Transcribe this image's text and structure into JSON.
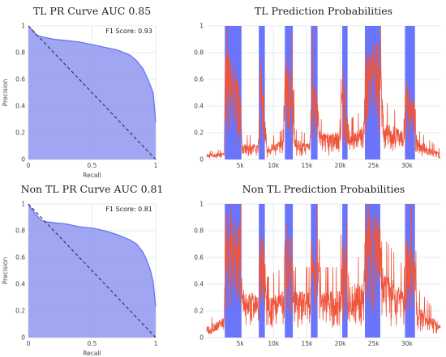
{
  "chart_data": [
    {
      "id": "tl-pr",
      "type": "area",
      "title": "TL PR Curve AUC 0.85",
      "xlabel": "Recall",
      "ylabel": "Precision",
      "xlim": [
        0,
        1
      ],
      "ylim": [
        0,
        1
      ],
      "xticks": [
        0,
        0.5,
        1
      ],
      "xtick_labels": [
        "0",
        "0.5",
        "1"
      ],
      "yticks": [
        0,
        0.2,
        0.4,
        0.6,
        0.8,
        1
      ],
      "ytick_labels": [
        "0",
        "0.2",
        "0.4",
        "0.6",
        "0.8",
        "1"
      ],
      "annotation": "F1 Score: 0.93",
      "baseline": {
        "x": [
          0,
          1
        ],
        "y": [
          1,
          0
        ],
        "style": "dashed"
      },
      "fill_color": "#8f96ee",
      "line_color": "#636efa",
      "x": [
        0,
        0.02,
        0.05,
        0.06,
        0.1,
        0.2,
        0.3,
        0.4,
        0.5,
        0.6,
        0.7,
        0.8,
        0.85,
        0.9,
        0.93,
        0.96,
        0.98,
        1.0
      ],
      "y": [
        1.0,
        0.98,
        0.95,
        0.93,
        0.92,
        0.9,
        0.89,
        0.88,
        0.86,
        0.84,
        0.82,
        0.78,
        0.74,
        0.68,
        0.62,
        0.55,
        0.5,
        0.28
      ]
    },
    {
      "id": "tl-prob",
      "type": "line",
      "title": "TL Prediction Probabilities",
      "xlabel": "",
      "ylabel": "",
      "xlim": [
        0,
        35000
      ],
      "ylim": [
        0,
        1
      ],
      "xticks": [
        5000,
        10000,
        15000,
        20000,
        25000,
        30000
      ],
      "xtick_labels": [
        "5k",
        "10k",
        "15k",
        "20k",
        "25k",
        "30k"
      ],
      "yticks": [
        0,
        0.2,
        0.4,
        0.6,
        0.8,
        1
      ],
      "ytick_labels": [
        "0",
        "0.2",
        "0.4",
        "0.6",
        "0.8",
        "1"
      ],
      "series": [
        {
          "color": "#636efa",
          "kind": "label-blocks",
          "regions": [
            [
              2700,
              5200
            ],
            [
              7800,
              8700
            ],
            [
              11700,
              12900
            ],
            [
              15600,
              16600
            ],
            [
              20300,
              21100
            ],
            [
              23700,
              26000
            ],
            [
              29700,
              31200
            ]
          ]
        },
        {
          "color": "#ef553b",
          "kind": "noisy-probability",
          "envelope": [
            [
              0,
              0.04
            ],
            [
              2600,
              0.05
            ],
            [
              2800,
              0.85
            ],
            [
              5000,
              0.6
            ],
            [
              5300,
              0.12
            ],
            [
              7700,
              0.12
            ],
            [
              8000,
              0.8
            ],
            [
              8700,
              0.4
            ],
            [
              9000,
              0.1
            ],
            [
              11500,
              0.15
            ],
            [
              11800,
              0.85
            ],
            [
              12900,
              0.6
            ],
            [
              13200,
              0.15
            ],
            [
              15500,
              0.12
            ],
            [
              15700,
              0.7
            ],
            [
              16600,
              0.5
            ],
            [
              17000,
              0.2
            ],
            [
              20000,
              0.2
            ],
            [
              20400,
              0.75
            ],
            [
              21100,
              0.3
            ],
            [
              21500,
              0.2
            ],
            [
              23500,
              0.25
            ],
            [
              23800,
              0.9
            ],
            [
              26000,
              0.85
            ],
            [
              26500,
              0.3
            ],
            [
              29600,
              0.2
            ],
            [
              29800,
              0.6
            ],
            [
              31200,
              0.45
            ],
            [
              31500,
              0.15
            ],
            [
              35000,
              0.05
            ]
          ]
        }
      ]
    },
    {
      "id": "nontl-pr",
      "type": "area",
      "title": "Non TL PR Curve AUC 0.81",
      "xlabel": "Recall",
      "ylabel": "Precision",
      "xlim": [
        0,
        1
      ],
      "ylim": [
        0,
        1
      ],
      "xticks": [
        0,
        0.5,
        1
      ],
      "xtick_labels": [
        "0",
        "0.5",
        "1"
      ],
      "yticks": [
        0,
        0.2,
        0.4,
        0.6,
        0.8,
        1
      ],
      "ytick_labels": [
        "0",
        "0.2",
        "0.4",
        "0.6",
        "0.8",
        "1"
      ],
      "annotation": "F1 Score: 0.81",
      "baseline": {
        "x": [
          0,
          1
        ],
        "y": [
          1,
          0
        ],
        "style": "dashed"
      },
      "fill_color": "#8f96ee",
      "line_color": "#636efa",
      "x": [
        0,
        0.02,
        0.06,
        0.1,
        0.12,
        0.2,
        0.3,
        0.4,
        0.5,
        0.6,
        0.7,
        0.8,
        0.85,
        0.9,
        0.93,
        0.96,
        0.98,
        1.0
      ],
      "y": [
        1.0,
        0.97,
        0.92,
        0.88,
        0.87,
        0.86,
        0.85,
        0.83,
        0.82,
        0.8,
        0.77,
        0.73,
        0.7,
        0.64,
        0.58,
        0.5,
        0.42,
        0.23
      ]
    },
    {
      "id": "nontl-prob",
      "type": "line",
      "title": "Non TL Prediction Probabilities",
      "xlabel": "",
      "ylabel": "",
      "xlim": [
        0,
        35000
      ],
      "ylim": [
        0,
        1
      ],
      "xticks": [
        5000,
        10000,
        15000,
        20000,
        25000,
        30000
      ],
      "xtick_labels": [
        "5k",
        "10k",
        "15k",
        "20k",
        "25k",
        "30k"
      ],
      "yticks": [
        0,
        0.2,
        0.4,
        0.6,
        0.8,
        1
      ],
      "ytick_labels": [
        "0",
        "0.2",
        "0.4",
        "0.6",
        "0.8",
        "1"
      ],
      "series": [
        {
          "color": "#636efa",
          "kind": "label-blocks",
          "regions": [
            [
              2700,
              5200
            ],
            [
              7800,
              8700
            ],
            [
              11700,
              12900
            ],
            [
              15600,
              16600
            ],
            [
              20300,
              21100
            ],
            [
              23700,
              26000
            ],
            [
              29700,
              31200
            ]
          ]
        },
        {
          "color": "#ef553b",
          "kind": "noisy-probability",
          "envelope": [
            [
              0,
              0.08
            ],
            [
              2600,
              0.15
            ],
            [
              2800,
              0.95
            ],
            [
              5000,
              0.85
            ],
            [
              5300,
              0.4
            ],
            [
              7700,
              0.3
            ],
            [
              8000,
              0.9
            ],
            [
              8700,
              0.6
            ],
            [
              9000,
              0.3
            ],
            [
              11500,
              0.35
            ],
            [
              11800,
              0.9
            ],
            [
              12900,
              0.75
            ],
            [
              13200,
              0.35
            ],
            [
              15500,
              0.35
            ],
            [
              15700,
              0.85
            ],
            [
              16600,
              0.7
            ],
            [
              17000,
              0.35
            ],
            [
              20000,
              0.35
            ],
            [
              20400,
              0.8
            ],
            [
              21100,
              0.55
            ],
            [
              21500,
              0.4
            ],
            [
              23500,
              0.4
            ],
            [
              23800,
              0.95
            ],
            [
              26000,
              0.9
            ],
            [
              26500,
              0.5
            ],
            [
              29600,
              0.35
            ],
            [
              29800,
              0.8
            ],
            [
              31200,
              0.6
            ],
            [
              31500,
              0.25
            ],
            [
              35000,
              0.1
            ]
          ]
        }
      ]
    }
  ]
}
